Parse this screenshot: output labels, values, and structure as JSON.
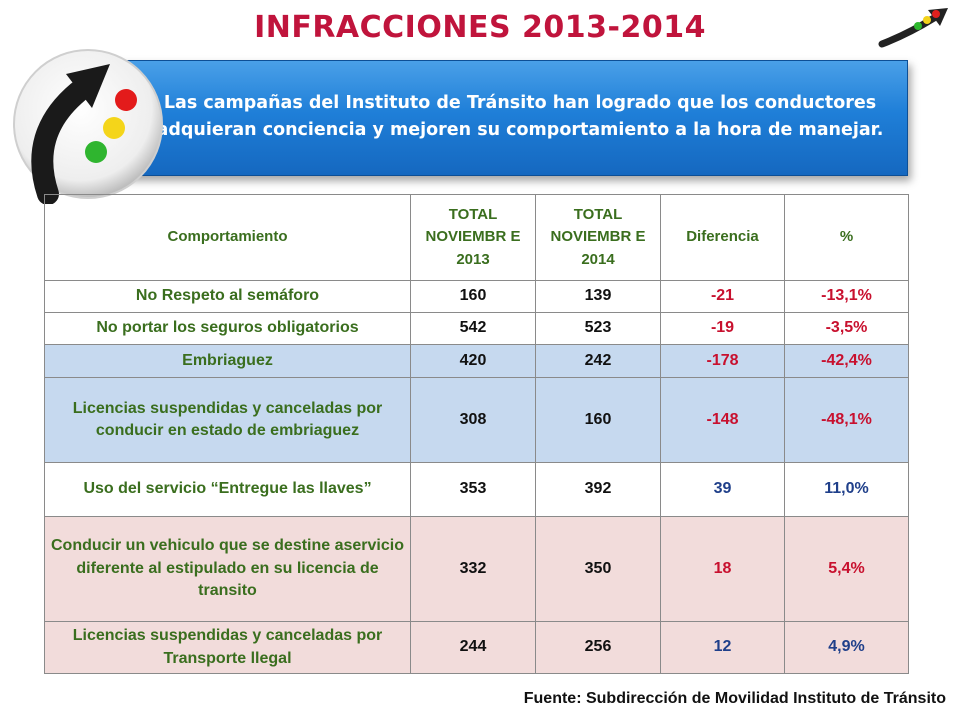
{
  "title": "INFRACCIONES 2013-2014",
  "banner": {
    "line1": "Las campañas del Instituto de Tránsito han logrado que los conductores",
    "line2": "adquieran conciencia y mejoren su comportamiento a la hora de manejar."
  },
  "table": {
    "headers": [
      "Comportamiento",
      "TOTAL NOVIEMBR E 2013",
      "TOTAL NOVIEMBR E 2014",
      "Diferencia",
      "%"
    ],
    "rows": [
      {
        "label": "No Respeto al semáforo",
        "y2013": "160",
        "y2014": "139",
        "diff": "-21",
        "pct": "-13,1%"
      },
      {
        "label": "No portar los seguros obligatorios",
        "y2013": "542",
        "y2014": "523",
        "diff": "-19",
        "pct": "-3,5%"
      },
      {
        "label": "Embriaguez",
        "y2013": "420",
        "y2014": "242",
        "diff": "-178",
        "pct": "-42,4%"
      },
      {
        "label": "Licencias suspendidas y canceladas por conducir en estado de embriaguez",
        "y2013": "308",
        "y2014": "160",
        "diff": "-148",
        "pct": "-48,1%"
      },
      {
        "label": "Uso del servicio “Entregue las llaves”",
        "y2013": "353",
        "y2014": "392",
        "diff": "39",
        "pct": "11,0%"
      },
      {
        "label": "Conducir un vehiculo que se destine aservicio diferente al estipulado en su licencia de transito",
        "y2013": "332",
        "y2014": "350",
        "diff": "18",
        "pct": "5,4%"
      },
      {
        "label": "Licencias suspendidas y canceladas por Transporte llegal",
        "y2013": "244",
        "y2014": "256",
        "diff": "12",
        "pct": "4,9%"
      }
    ]
  },
  "source": "Fuente: Subdirección de Movilidad Instituto de Tránsito",
  "icons": [
    "traffic-light-arrow-logo",
    "traffic-light-arrow-small-icon"
  ],
  "colors": {
    "title": "#c0143c",
    "banner": "#1f7fd8",
    "header_text": "#3a6e1e",
    "negative": "#c8102e",
    "positive": "#1f3f8a",
    "row_blue": "#c6d9ef",
    "row_pink": "#f2dcdb"
  }
}
